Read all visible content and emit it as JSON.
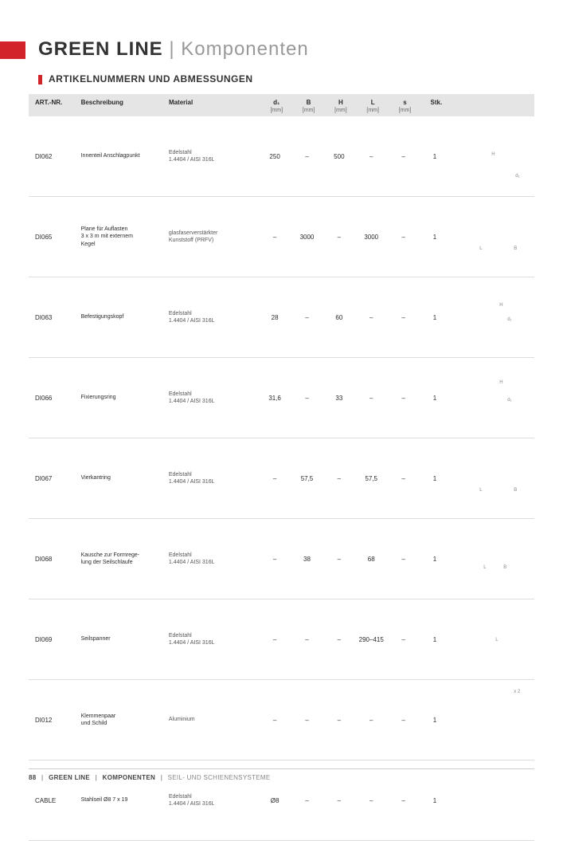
{
  "header": {
    "brand": "GREEN LINE",
    "separator": "|",
    "section": "Komponenten",
    "subtitle": "ARTIKELNUMMERN UND ABMESSUNGEN"
  },
  "table": {
    "columns": {
      "art": "ART.-NR.",
      "besch": "Beschreibung",
      "mat": "Material",
      "d1": "d₁",
      "b": "B",
      "h": "H",
      "l": "L",
      "s": "s",
      "stk": "Stk.",
      "unit": "[mm]"
    },
    "rows": [
      {
        "art": "DI062",
        "besch": "Innenteil Anschlagpunkt",
        "mat": "Edelstahl\n1.4404 / AISI 316L",
        "d1": "250",
        "b": "–",
        "h": "500",
        "l": "–",
        "s": "–",
        "stk": "1",
        "diag": {
          "labels": [
            {
              "t": "H",
              "x": 50,
              "y": 25
            },
            {
              "t": "d₁",
              "x": 80,
              "y": 52
            }
          ]
        }
      },
      {
        "art": "DI065",
        "besch": "Plane für Auflasten\n3 x 3 m mit externem\nKegel",
        "mat": "glasfaserverstärkter\nKunststoff (PRFV)",
        "d1": "–",
        "b": "3000",
        "h": "–",
        "l": "3000",
        "s": "–",
        "stk": "1",
        "diag": {
          "labels": [
            {
              "t": "L",
              "x": 35,
              "y": 42
            },
            {
              "t": "B",
              "x": 78,
              "y": 42
            }
          ]
        }
      },
      {
        "art": "DI063",
        "besch": "Befestigungskopf",
        "mat": "Edelstahl\n1.4404 / AISI 316L",
        "d1": "28",
        "b": "–",
        "h": "60",
        "l": "–",
        "s": "–",
        "stk": "1",
        "diag": {
          "labels": [
            {
              "t": "H",
              "x": 60,
              "y": 12
            },
            {
              "t": "d₁",
              "x": 70,
              "y": 30
            }
          ]
        }
      },
      {
        "art": "DI066",
        "besch": "Fixierungsring",
        "mat": "Edelstahl\n1.4404 / AISI 316L",
        "d1": "31,6",
        "b": "–",
        "h": "33",
        "l": "–",
        "s": "–",
        "stk": "1",
        "diag": {
          "labels": [
            {
              "t": "H",
              "x": 60,
              "y": 8
            },
            {
              "t": "d₁",
              "x": 70,
              "y": 30
            }
          ]
        }
      },
      {
        "art": "DI067",
        "besch": "Vierkantring",
        "mat": "Edelstahl\n1.4404 / AISI 316L",
        "d1": "–",
        "b": "57,5",
        "h": "–",
        "l": "57,5",
        "s": "–",
        "stk": "1",
        "diag": {
          "labels": [
            {
              "t": "L",
              "x": 35,
              "y": 42
            },
            {
              "t": "B",
              "x": 78,
              "y": 42
            }
          ]
        }
      },
      {
        "art": "DI068",
        "besch": "Kausche zur Formrege-\nlung der Seilschlaufe",
        "mat": "Edelstahl\n1.4404 / AISI 316L",
        "d1": "–",
        "b": "38",
        "h": "–",
        "l": "68",
        "s": "–",
        "stk": "1",
        "diag": {
          "labels": [
            {
              "t": "L",
              "x": 40,
              "y": 38
            },
            {
              "t": "B",
              "x": 65,
              "y": 38
            }
          ]
        }
      },
      {
        "art": "DI069",
        "besch": "Seilspanner",
        "mat": "Edelstahl\n1.4404 / AISI 316L",
        "d1": "–",
        "b": "–",
        "h": "–",
        "l": "290–415",
        "s": "–",
        "stk": "1",
        "diag": {
          "labels": [
            {
              "t": "L",
              "x": 55,
              "y": 28
            }
          ]
        }
      },
      {
        "art": "DI012",
        "besch": "Klemmenpaar\nund Schild",
        "mat": "Aluminium",
        "d1": "–",
        "b": "–",
        "h": "–",
        "l": "–",
        "s": "–",
        "stk": "1",
        "diag": {
          "labels": [
            {
              "t": "x 2",
              "x": 78,
              "y": -8
            }
          ]
        }
      },
      {
        "art": "CABLE",
        "besch": "Stahlseil Ø8 7 x 19",
        "mat": "Edelstahl\n1.4404 / AISI 316L",
        "d1": "Ø8",
        "b": "–",
        "h": "–",
        "l": "–",
        "s": "–",
        "stk": "1",
        "diag": {
          "labels": []
        }
      }
    ]
  },
  "footer": {
    "page": "88",
    "crumb1": "GREEN LINE",
    "crumb2": "KOMPONENTEN",
    "crumb3": "SEIL- UND SCHIENENSYSTEME"
  },
  "style": {
    "accent": "#d2232a",
    "header_bg": "#e5e5e5"
  }
}
